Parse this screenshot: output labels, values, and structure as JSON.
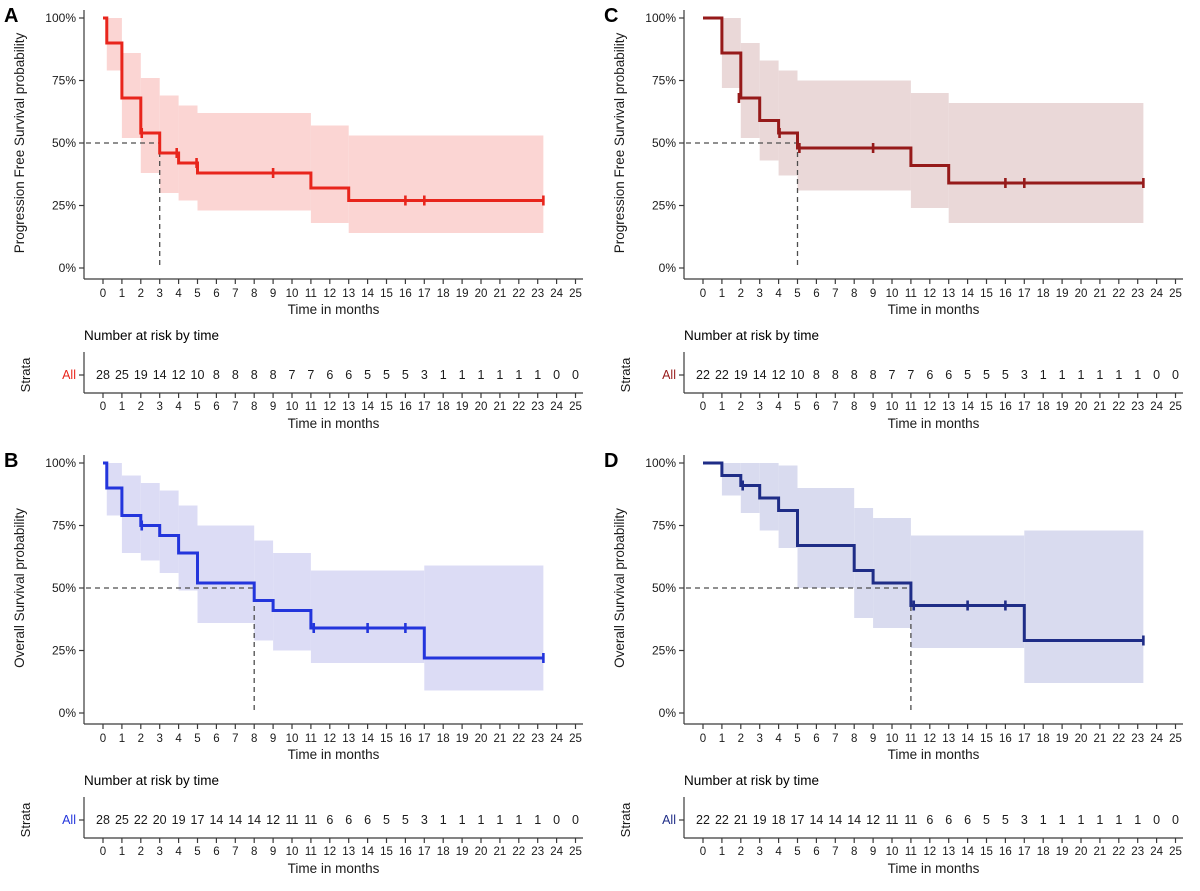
{
  "shared": {
    "x_ticks": [
      0,
      1,
      2,
      3,
      4,
      5,
      6,
      7,
      8,
      9,
      10,
      11,
      12,
      13,
      14,
      15,
      16,
      17,
      18,
      19,
      20,
      21,
      22,
      23,
      24,
      25
    ],
    "y_tick_values": [
      0,
      25,
      50,
      75,
      100
    ],
    "y_tick_labels": [
      "0%",
      "25%",
      "50%",
      "75%",
      "100%"
    ],
    "axis_color": "#3a3a3a",
    "text_color": "#1a1a1a",
    "dashed_line_color": "#4d4d4d"
  },
  "chart_data": [
    {
      "id": "A",
      "type": "line",
      "subtype": "kaplan-meier-step",
      "grid_position": "top-left",
      "panel_label": "A",
      "ylabel": "Progression Free Survival probability",
      "xlabel": "Time in months",
      "risk_title": "Number at risk by time",
      "strata_axis_label": "Strata",
      "strata_name": "All",
      "line_color": "#e8251c",
      "band_color": "#fbd5d3",
      "median_months": 3,
      "xlim": [
        0,
        25
      ],
      "ylim": [
        0,
        100
      ],
      "steps": [
        [
          0,
          100
        ],
        [
          0.2,
          90
        ],
        [
          1,
          68
        ],
        [
          2,
          54
        ],
        [
          3,
          46
        ],
        [
          4,
          42
        ],
        [
          5,
          38
        ],
        [
          11,
          32
        ],
        [
          13,
          27
        ]
      ],
      "end_time": 23.3,
      "censors": [
        [
          2.05,
          54
        ],
        [
          3.9,
          46
        ],
        [
          4.95,
          42
        ],
        [
          9,
          38
        ],
        [
          16,
          27
        ],
        [
          17,
          27
        ],
        [
          23.3,
          27
        ]
      ],
      "ci_band": [
        [
          0.2,
          1,
          100,
          79
        ],
        [
          1,
          2,
          86,
          52
        ],
        [
          2,
          3,
          76,
          38
        ],
        [
          3,
          4,
          69,
          30
        ],
        [
          4,
          5,
          65,
          27
        ],
        [
          5,
          11,
          62,
          23
        ],
        [
          11,
          13,
          57,
          18
        ],
        [
          13,
          23.3,
          53,
          14
        ]
      ],
      "risk_numbers": [
        28,
        25,
        19,
        14,
        12,
        10,
        8,
        8,
        8,
        8,
        7,
        7,
        6,
        6,
        5,
        5,
        5,
        3,
        1,
        1,
        1,
        1,
        1,
        1,
        0,
        0
      ]
    },
    {
      "id": "C",
      "type": "line",
      "subtype": "kaplan-meier-step",
      "grid_position": "top-right",
      "panel_label": "C",
      "ylabel": "Progression Free Survival probability",
      "xlabel": "Time in months",
      "risk_title": "Number at risk by time",
      "strata_axis_label": "Strata",
      "strata_name": "All",
      "line_color": "#961a1a",
      "band_color": "#ead8d8",
      "median_months": 5,
      "xlim": [
        0,
        25
      ],
      "ylim": [
        0,
        100
      ],
      "steps": [
        [
          0,
          100
        ],
        [
          1,
          86
        ],
        [
          2,
          68
        ],
        [
          3,
          59
        ],
        [
          4,
          54
        ],
        [
          5,
          48
        ],
        [
          11,
          41
        ],
        [
          13,
          34
        ]
      ],
      "end_time": 23.3,
      "censors": [
        [
          1.9,
          68
        ],
        [
          4.05,
          54
        ],
        [
          5.1,
          48
        ],
        [
          9,
          48
        ],
        [
          16,
          34
        ],
        [
          17,
          34
        ],
        [
          23.3,
          34
        ]
      ],
      "ci_band": [
        [
          1,
          2,
          100,
          72
        ],
        [
          2,
          3,
          90,
          52
        ],
        [
          3,
          4,
          83,
          43
        ],
        [
          4,
          5,
          79,
          37
        ],
        [
          5,
          11,
          75,
          31
        ],
        [
          11,
          13,
          70,
          24
        ],
        [
          13,
          23.3,
          66,
          18
        ]
      ],
      "risk_numbers": [
        22,
        22,
        19,
        14,
        12,
        10,
        8,
        8,
        8,
        8,
        7,
        7,
        6,
        6,
        5,
        5,
        5,
        3,
        1,
        1,
        1,
        1,
        1,
        1,
        0,
        0
      ]
    },
    {
      "id": "B",
      "type": "line",
      "subtype": "kaplan-meier-step",
      "grid_position": "bottom-left",
      "panel_label": "B",
      "ylabel": "Overall Survival probability",
      "xlabel": "Time in months",
      "risk_title": "Number at risk by time",
      "strata_axis_label": "Strata",
      "strata_name": "All",
      "line_color": "#2335dc",
      "band_color": "#dcdcf5",
      "median_months": 8,
      "xlim": [
        0,
        25
      ],
      "ylim": [
        0,
        100
      ],
      "steps": [
        [
          0,
          100
        ],
        [
          0.2,
          90
        ],
        [
          1,
          79
        ],
        [
          2,
          75
        ],
        [
          3,
          71
        ],
        [
          4,
          64
        ],
        [
          5,
          52
        ],
        [
          8,
          45
        ],
        [
          9,
          41
        ],
        [
          11,
          34
        ],
        [
          17,
          22
        ]
      ],
      "end_time": 23.3,
      "censors": [
        [
          2.05,
          75
        ],
        [
          11.15,
          34
        ],
        [
          14,
          34
        ],
        [
          16,
          34
        ],
        [
          23.3,
          22
        ]
      ],
      "ci_band": [
        [
          0.2,
          1,
          100,
          79
        ],
        [
          1,
          2,
          95,
          64
        ],
        [
          2,
          3,
          92,
          61
        ],
        [
          3,
          4,
          89,
          56
        ],
        [
          4,
          5,
          83,
          49
        ],
        [
          5,
          8,
          75,
          36
        ],
        [
          8,
          9,
          69,
          29
        ],
        [
          9,
          11,
          64,
          25
        ],
        [
          11,
          17,
          57,
          20
        ],
        [
          17,
          23.3,
          59,
          9
        ]
      ],
      "risk_numbers": [
        28,
        25,
        22,
        20,
        19,
        17,
        14,
        14,
        14,
        12,
        11,
        11,
        6,
        6,
        6,
        5,
        5,
        3,
        1,
        1,
        1,
        1,
        1,
        1,
        0,
        0
      ]
    },
    {
      "id": "D",
      "type": "line",
      "subtype": "kaplan-meier-step",
      "grid_position": "bottom-right",
      "panel_label": "D",
      "ylabel": "Overall Survival probability",
      "xlabel": "Time in months",
      "risk_title": "Number at risk by time",
      "strata_axis_label": "Strata",
      "strata_name": "All",
      "line_color": "#1f2d87",
      "band_color": "#d9dbef",
      "median_months": 11,
      "xlim": [
        0,
        25
      ],
      "ylim": [
        0,
        100
      ],
      "steps": [
        [
          0,
          100
        ],
        [
          1,
          95
        ],
        [
          2,
          91
        ],
        [
          3,
          86
        ],
        [
          4,
          81
        ],
        [
          5,
          67
        ],
        [
          8,
          57
        ],
        [
          9,
          52
        ],
        [
          11,
          43
        ],
        [
          17,
          29
        ]
      ],
      "end_time": 23.3,
      "censors": [
        [
          2.1,
          91
        ],
        [
          11.15,
          43
        ],
        [
          14,
          43
        ],
        [
          16,
          43
        ],
        [
          23.3,
          29
        ]
      ],
      "ci_band": [
        [
          1,
          2,
          100,
          87
        ],
        [
          2,
          3,
          100,
          80
        ],
        [
          3,
          4,
          100,
          73
        ],
        [
          4,
          5,
          99,
          66
        ],
        [
          5,
          8,
          90,
          50
        ],
        [
          8,
          9,
          82,
          38
        ],
        [
          9,
          11,
          78,
          34
        ],
        [
          11,
          17,
          71,
          26
        ],
        [
          17,
          23.3,
          73,
          12
        ]
      ],
      "risk_numbers": [
        22,
        22,
        21,
        19,
        18,
        17,
        14,
        14,
        14,
        12,
        11,
        11,
        6,
        6,
        6,
        5,
        5,
        3,
        1,
        1,
        1,
        1,
        1,
        1,
        0,
        0
      ]
    }
  ]
}
